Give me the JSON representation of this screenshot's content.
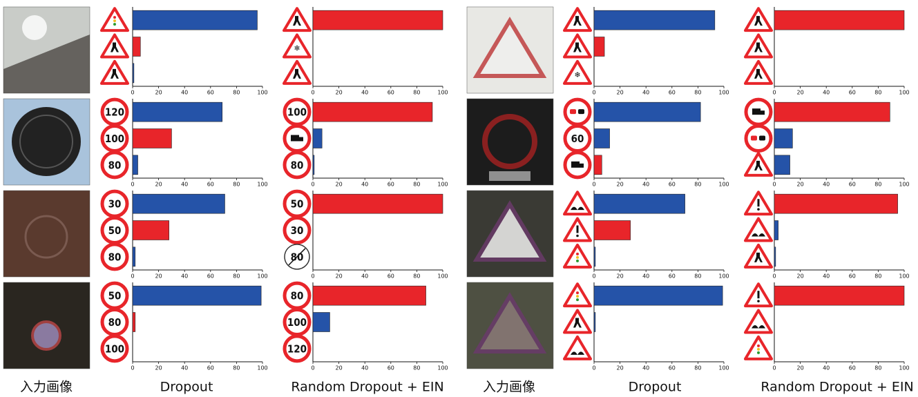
{
  "chart_data": [
    {
      "type": "bar",
      "categories": [
        null,
        null,
        null
      ],
      "values": [
        96,
        6,
        1
      ],
      "colors": [
        "#2553a8",
        "#e8252a",
        "#2553a8"
      ],
      "xlim": [
        0,
        100
      ],
      "xticks": [
        0,
        20,
        40,
        60,
        80,
        100
      ]
    },
    {
      "type": "bar",
      "categories": [
        null,
        null,
        null
      ],
      "values": [
        100,
        0,
        0
      ],
      "colors": [
        "#e8252a",
        "#2553a8",
        "#2553a8"
      ],
      "xlim": [
        0,
        100
      ],
      "xticks": [
        0,
        20,
        40,
        60,
        80,
        100
      ]
    },
    {
      "type": "bar",
      "categories": [
        null,
        null,
        null
      ],
      "values": [
        93,
        8,
        0
      ],
      "colors": [
        "#2553a8",
        "#e8252a",
        "#2553a8"
      ],
      "xlim": [
        0,
        100
      ],
      "xticks": [
        0,
        20,
        40,
        60,
        80,
        100
      ]
    },
    {
      "type": "bar",
      "categories": [
        null,
        null,
        null
      ],
      "values": [
        100,
        0,
        0
      ],
      "colors": [
        "#e8252a",
        "#2553a8",
        "#2553a8"
      ],
      "xlim": [
        0,
        100
      ],
      "xticks": [
        0,
        20,
        40,
        60,
        80,
        100
      ]
    },
    {
      "type": "bar",
      "categories": [
        "120",
        "100",
        "80"
      ],
      "values": [
        69,
        30,
        4
      ],
      "colors": [
        "#2553a8",
        "#e8252a",
        "#2553a8"
      ],
      "xlim": [
        0,
        100
      ],
      "xticks": [
        0,
        20,
        40,
        60,
        80,
        100
      ]
    },
    {
      "type": "bar",
      "categories": [
        "100",
        null,
        "80"
      ],
      "values": [
        92,
        7,
        1
      ],
      "colors": [
        "#e8252a",
        "#2553a8",
        "#2553a8"
      ],
      "xlim": [
        0,
        100
      ],
      "xticks": [
        0,
        20,
        40,
        60,
        80,
        100
      ]
    },
    {
      "type": "bar",
      "categories": [
        null,
        "60",
        null
      ],
      "values": [
        82,
        12,
        6
      ],
      "colors": [
        "#2553a8",
        "#2553a8",
        "#e8252a"
      ],
      "xlim": [
        0,
        100
      ],
      "xticks": [
        0,
        20,
        40,
        60,
        80,
        100
      ]
    },
    {
      "type": "bar",
      "categories": [
        null,
        null,
        null
      ],
      "values": [
        89,
        14,
        12
      ],
      "colors": [
        "#e8252a",
        "#2553a8",
        "#2553a8"
      ],
      "xlim": [
        0,
        100
      ],
      "xticks": [
        0,
        20,
        40,
        60,
        80,
        100
      ]
    },
    {
      "type": "bar",
      "categories": [
        "30",
        "50",
        "80"
      ],
      "values": [
        71,
        28,
        2
      ],
      "colors": [
        "#2553a8",
        "#e8252a",
        "#2553a8"
      ],
      "xlim": [
        0,
        100
      ],
      "xticks": [
        0,
        20,
        40,
        60,
        80,
        100
      ]
    },
    {
      "type": "bar",
      "categories": [
        "50",
        "30",
        "80"
      ],
      "values": [
        100,
        0,
        0
      ],
      "colors": [
        "#e8252a",
        "#2553a8",
        "#2553a8"
      ],
      "xlim": [
        0,
        100
      ],
      "xticks": [
        0,
        20,
        40,
        60,
        80,
        100
      ]
    },
    {
      "type": "bar",
      "categories": [
        null,
        null,
        null
      ],
      "values": [
        70,
        28,
        1
      ],
      "colors": [
        "#2553a8",
        "#e8252a",
        "#2553a8"
      ],
      "xlim": [
        0,
        100
      ],
      "xticks": [
        0,
        20,
        40,
        60,
        80,
        100
      ]
    },
    {
      "type": "bar",
      "categories": [
        null,
        null,
        null
      ],
      "values": [
        95,
        3,
        1
      ],
      "colors": [
        "#e8252a",
        "#2553a8",
        "#2553a8"
      ],
      "xlim": [
        0,
        100
      ],
      "xticks": [
        0,
        20,
        40,
        60,
        80,
        100
      ]
    },
    {
      "type": "bar",
      "categories": [
        "50",
        "80",
        "100"
      ],
      "values": [
        99,
        2,
        0
      ],
      "colors": [
        "#2553a8",
        "#e8252a",
        "#2553a8"
      ],
      "xlim": [
        0,
        100
      ],
      "xticks": [
        0,
        20,
        40,
        60,
        80,
        100
      ]
    },
    {
      "type": "bar",
      "categories": [
        "80",
        "100",
        "120"
      ],
      "values": [
        87,
        13,
        0
      ],
      "colors": [
        "#e8252a",
        "#2553a8",
        "#2553a8"
      ],
      "xlim": [
        0,
        100
      ],
      "xticks": [
        0,
        20,
        40,
        60,
        80,
        100
      ]
    },
    {
      "type": "bar",
      "categories": [
        null,
        null,
        null
      ],
      "values": [
        99,
        1,
        0
      ],
      "colors": [
        "#2553a8",
        "#2553a8",
        "#2553a8"
      ],
      "xlim": [
        0,
        100
      ],
      "xticks": [
        0,
        20,
        40,
        60,
        80,
        100
      ]
    },
    {
      "type": "bar",
      "categories": [
        null,
        null,
        null
      ],
      "values": [
        100,
        0,
        0
      ],
      "colors": [
        "#e8252a",
        "#2553a8",
        "#2553a8"
      ],
      "xlim": [
        0,
        100
      ],
      "xticks": [
        0,
        20,
        40,
        60,
        80,
        100
      ]
    }
  ],
  "captions": [
    "入力画像",
    "Dropout",
    "Random Dropout + EIN",
    "入力画像",
    "Dropout",
    "Random Dropout + EIN"
  ]
}
